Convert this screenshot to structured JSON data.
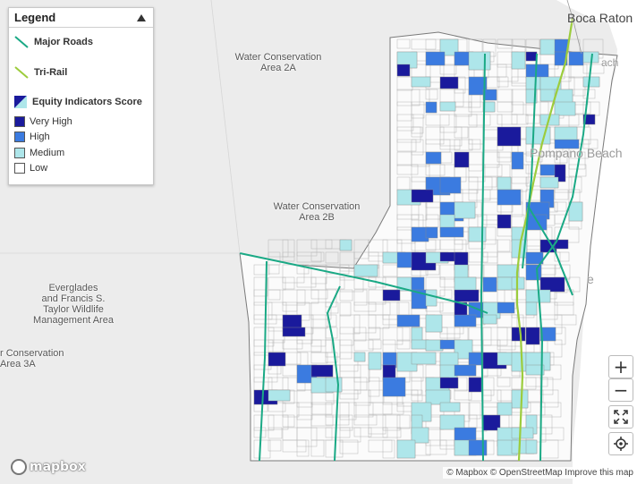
{
  "legend": {
    "title": "Legend",
    "major_roads": "Major Roads",
    "tri_rail": "Tri-Rail",
    "equity_title": "Equity Indicators Score",
    "levels": [
      {
        "label": "Very High",
        "color": "#1a1a9c"
      },
      {
        "label": "High",
        "color": "#3b7be0"
      },
      {
        "label": "Medium",
        "color": "#aee6ea"
      },
      {
        "label": "Low",
        "color": "#ffffff"
      }
    ]
  },
  "colors": {
    "major_road": "#1aa985",
    "tri_rail": "#9ccc3c",
    "ocean": "#ffffff",
    "background": "#ececec"
  },
  "places": {
    "wca_2a": [
      "Water Conservation",
      "Area 2A"
    ],
    "wca_2b": [
      "Water Conservation",
      "Area 2B"
    ],
    "everglades": [
      "Everglades",
      "and Francis S.",
      "Taylor Wildlife",
      "Management Area"
    ],
    "wca_3a": [
      "r Conservation",
      "Area 3A"
    ]
  },
  "cities": {
    "boca": "Boca Raton",
    "pompano_partial": "ach",
    "pompano_beach": "Pompano Beach",
    "pompano_e": "e"
  },
  "controls": {
    "zoom_in": "+",
    "zoom_out": "−",
    "fullscreen_icon": "fullscreen-icon",
    "locate_icon": "locate-icon"
  },
  "attribution": "© Mapbox © OpenStreetMap  Improve this map",
  "mapbox_logo": "mapbox"
}
